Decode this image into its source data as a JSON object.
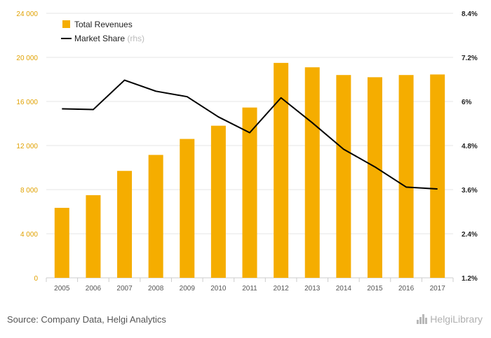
{
  "chart_data": {
    "type": "bar",
    "categories": [
      "2005",
      "2006",
      "2007",
      "2008",
      "2009",
      "2010",
      "2011",
      "2012",
      "2013",
      "2014",
      "2015",
      "2016",
      "2017"
    ],
    "series": [
      {
        "name": "Total Revenues",
        "type": "bar",
        "axis": "left",
        "values": [
          6350,
          7500,
          9700,
          11150,
          12600,
          13800,
          15450,
          19500,
          19100,
          18400,
          18200,
          18400,
          18450
        ]
      },
      {
        "name": "Market Share",
        "note": "(rhs)",
        "type": "line",
        "axis": "right",
        "values": [
          5.8,
          5.78,
          6.58,
          6.28,
          6.13,
          5.58,
          5.15,
          6.1,
          5.42,
          4.7,
          4.22,
          3.67,
          3.62
        ]
      }
    ],
    "left_axis": {
      "ylim": [
        0,
        24000
      ],
      "ticks": [
        0,
        4000,
        8000,
        12000,
        16000,
        20000,
        24000
      ],
      "tick_labels": [
        "0",
        "4 000",
        "8 000",
        "12 000",
        "16 000",
        "20 000",
        "24 000"
      ]
    },
    "right_axis": {
      "ylim": [
        1.2,
        8.4
      ],
      "ticks": [
        1.2,
        2.4,
        3.6,
        4.8,
        6.0,
        7.2,
        8.4
      ],
      "tick_labels": [
        "1.2%",
        "2.4%",
        "3.6%",
        "4.8%",
        "6%",
        "7.2%",
        "8.4%"
      ]
    },
    "legend": {
      "position": "top-left"
    },
    "grid": true
  },
  "colors": {
    "bar": "#f5ad00",
    "line": "#000000",
    "grid": "#e6e6e6",
    "left_tick": "#e0a100"
  },
  "footer": {
    "source": "Source: Company Data, Helgi Analytics",
    "brand": "HelgiLibrary"
  }
}
